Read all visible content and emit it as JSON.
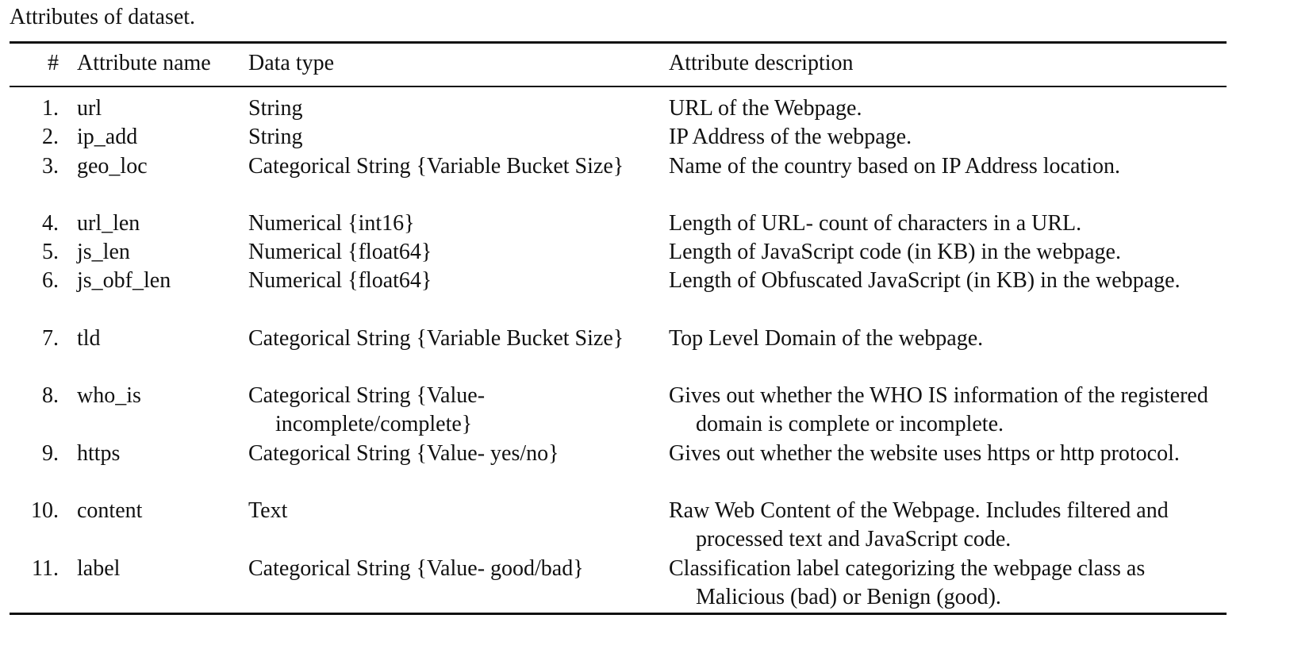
{
  "caption": "Attributes of dataset.",
  "headers": {
    "num": "#",
    "name": "Attribute name",
    "type": "Data type",
    "desc": "Attribute description"
  },
  "rows": [
    {
      "num": "1.",
      "name": "url",
      "type": "String",
      "desc": "URL of the Webpage."
    },
    {
      "num": "2.",
      "name": "ip_add",
      "type": "String",
      "desc": "IP Address of the webpage."
    },
    {
      "num": "3.",
      "name": "geo_loc",
      "type": "Categorical String {Variable Bucket Size}",
      "desc": "Name of the country based on IP Address location."
    },
    {
      "num": "4.",
      "name": "url_len",
      "type": "Numerical {int16}",
      "desc": "Length of URL- count of characters in a URL."
    },
    {
      "num": "5.",
      "name": "js_len",
      "type": "Numerical {float64}",
      "desc": "Length of JavaScript code (in KB) in the webpage."
    },
    {
      "num": "6.",
      "name": "js_obf_len",
      "type": "Numerical {float64}",
      "desc": "Length of Obfuscated JavaScript (in KB) in the webpage."
    },
    {
      "num": "7.",
      "name": "tld",
      "type": "Categorical String {Variable Bucket Size}",
      "desc": "Top Level Domain of the webpage."
    },
    {
      "num": "8.",
      "name": "who_is",
      "type": "Categorical String {Value- incomplete/complete}",
      "desc": "Gives out whether the WHO IS information of the registered domain is complete or incomplete."
    },
    {
      "num": "9.",
      "name": "https",
      "type": "Categorical String {Value- yes/no}",
      "desc": "Gives out whether the website uses https or http protocol."
    },
    {
      "num": "10.",
      "name": "content",
      "type": "Text",
      "desc": "Raw Web Content of the Webpage. Includes filtered and processed text and JavaScript code."
    },
    {
      "num": "11.",
      "name": "label",
      "type": "Categorical String {Value- good/bad}",
      "desc": "Classification label categorizing the webpage class as Malicious (bad) or Benign (good)."
    }
  ]
}
